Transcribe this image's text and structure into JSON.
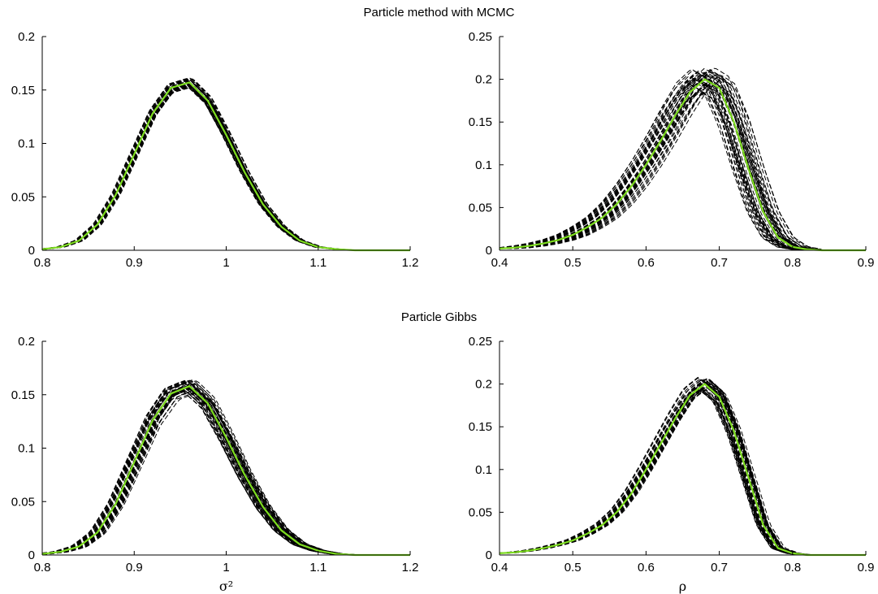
{
  "titles": {
    "top": "Particle method with MCMC",
    "bottom": "Particle Gibbs"
  },
  "colors": {
    "reference_line": "#7ddc1f",
    "mc_lines": "#000000"
  },
  "chart_data": [
    {
      "id": "mcmc-sigma2",
      "type": "line",
      "group_title": "Particle method with MCMC",
      "xlabel": "",
      "ylabel": "",
      "xlim": [
        0.8,
        1.2
      ],
      "ylim": [
        0,
        0.2
      ],
      "xticks": [
        "0.8",
        "0.9",
        "1",
        "1.1",
        "1.2"
      ],
      "yticks": [
        "0",
        "0.05",
        "0.1",
        "0.15",
        "0.2"
      ],
      "grid": false,
      "reference_color": "#7ddc1f",
      "reference": {
        "x": [
          0.8,
          0.82,
          0.84,
          0.86,
          0.88,
          0.9,
          0.92,
          0.94,
          0.96,
          0.98,
          1.0,
          1.02,
          1.04,
          1.06,
          1.08,
          1.1,
          1.12,
          1.14,
          1.16,
          1.18,
          1.2
        ],
        "y": [
          0.001,
          0.003,
          0.009,
          0.024,
          0.052,
          0.09,
          0.128,
          0.152,
          0.157,
          0.14,
          0.108,
          0.073,
          0.043,
          0.022,
          0.009,
          0.003,
          0.001,
          0.0,
          0.0,
          0.0,
          0.0
        ]
      },
      "mc_runs": 40,
      "mc_spread": {
        "x_shift": 0.005,
        "y_scale": 0.03,
        "active_range": [
          0.8,
          1.2
        ]
      }
    },
    {
      "id": "mcmc-rho",
      "type": "line",
      "group_title": "Particle method with MCMC",
      "xlabel": "",
      "ylabel": "",
      "xlim": [
        0.4,
        0.9
      ],
      "ylim": [
        0,
        0.25
      ],
      "xticks": [
        "0.4",
        "0.5",
        "0.6",
        "0.7",
        "0.8",
        "0.9"
      ],
      "yticks": [
        "0",
        "0.05",
        "0.1",
        "0.15",
        "0.2",
        "0.25"
      ],
      "grid": false,
      "reference_color": "#7ddc1f",
      "reference": {
        "x": [
          0.4,
          0.42,
          0.44,
          0.46,
          0.48,
          0.5,
          0.52,
          0.54,
          0.56,
          0.58,
          0.6,
          0.62,
          0.64,
          0.66,
          0.68,
          0.7,
          0.72,
          0.74,
          0.76,
          0.78,
          0.8,
          0.82,
          0.84,
          0.86,
          0.88,
          0.9
        ],
        "y": [
          0.002,
          0.003,
          0.005,
          0.008,
          0.012,
          0.018,
          0.027,
          0.038,
          0.054,
          0.075,
          0.1,
          0.128,
          0.158,
          0.185,
          0.2,
          0.19,
          0.15,
          0.095,
          0.045,
          0.015,
          0.004,
          0.001,
          0.0,
          0.0,
          0.0,
          0.0
        ]
      },
      "mc_runs": 40,
      "mc_spread": {
        "x_shift": 0.022,
        "y_scale": 0.07,
        "active_range": [
          0.4,
          0.84
        ]
      }
    },
    {
      "id": "gibbs-sigma2",
      "type": "line",
      "group_title": "Particle Gibbs",
      "xlabel": "σ²",
      "ylabel": "",
      "xlim": [
        0.8,
        1.2
      ],
      "ylim": [
        0,
        0.2
      ],
      "xticks": [
        "0.8",
        "0.9",
        "1",
        "1.1",
        "1.2"
      ],
      "yticks": [
        "0",
        "0.05",
        "0.1",
        "0.15",
        "0.2"
      ],
      "grid": false,
      "reference_color": "#7ddc1f",
      "reference": {
        "x": [
          0.8,
          0.82,
          0.84,
          0.86,
          0.88,
          0.9,
          0.92,
          0.94,
          0.96,
          0.98,
          1.0,
          1.02,
          1.04,
          1.06,
          1.08,
          1.1,
          1.12,
          1.14,
          1.16,
          1.18,
          1.2
        ],
        "y": [
          0.001,
          0.003,
          0.008,
          0.021,
          0.048,
          0.087,
          0.126,
          0.151,
          0.158,
          0.142,
          0.11,
          0.075,
          0.045,
          0.023,
          0.01,
          0.004,
          0.001,
          0.0,
          0.0,
          0.0,
          0.0
        ]
      },
      "mc_runs": 40,
      "mc_spread": {
        "x_shift": 0.009,
        "y_scale": 0.04,
        "active_range": [
          0.8,
          1.2
        ]
      }
    },
    {
      "id": "gibbs-rho",
      "type": "line",
      "group_title": "Particle Gibbs",
      "xlabel": "ρ",
      "ylabel": "",
      "xlim": [
        0.4,
        0.9
      ],
      "ylim": [
        0,
        0.25
      ],
      "xticks": [
        "0.4",
        "0.5",
        "0.6",
        "0.7",
        "0.8",
        "0.9"
      ],
      "yticks": [
        "0",
        "0.05",
        "0.1",
        "0.15",
        "0.2",
        "0.25"
      ],
      "grid": false,
      "reference_color": "#7ddc1f",
      "reference": {
        "x": [
          0.4,
          0.42,
          0.44,
          0.46,
          0.48,
          0.5,
          0.52,
          0.54,
          0.56,
          0.58,
          0.6,
          0.62,
          0.64,
          0.66,
          0.68,
          0.7,
          0.72,
          0.74,
          0.76,
          0.78,
          0.8,
          0.82,
          0.84,
          0.86,
          0.88,
          0.9
        ],
        "y": [
          0.002,
          0.003,
          0.005,
          0.008,
          0.012,
          0.017,
          0.025,
          0.035,
          0.05,
          0.072,
          0.1,
          0.13,
          0.16,
          0.187,
          0.2,
          0.185,
          0.145,
          0.09,
          0.035,
          0.008,
          0.002,
          0.0,
          0.0,
          0.0,
          0.0,
          0.0
        ]
      },
      "mc_runs": 40,
      "mc_spread": {
        "x_shift": 0.01,
        "y_scale": 0.04,
        "active_range": [
          0.4,
          0.84
        ]
      }
    }
  ]
}
